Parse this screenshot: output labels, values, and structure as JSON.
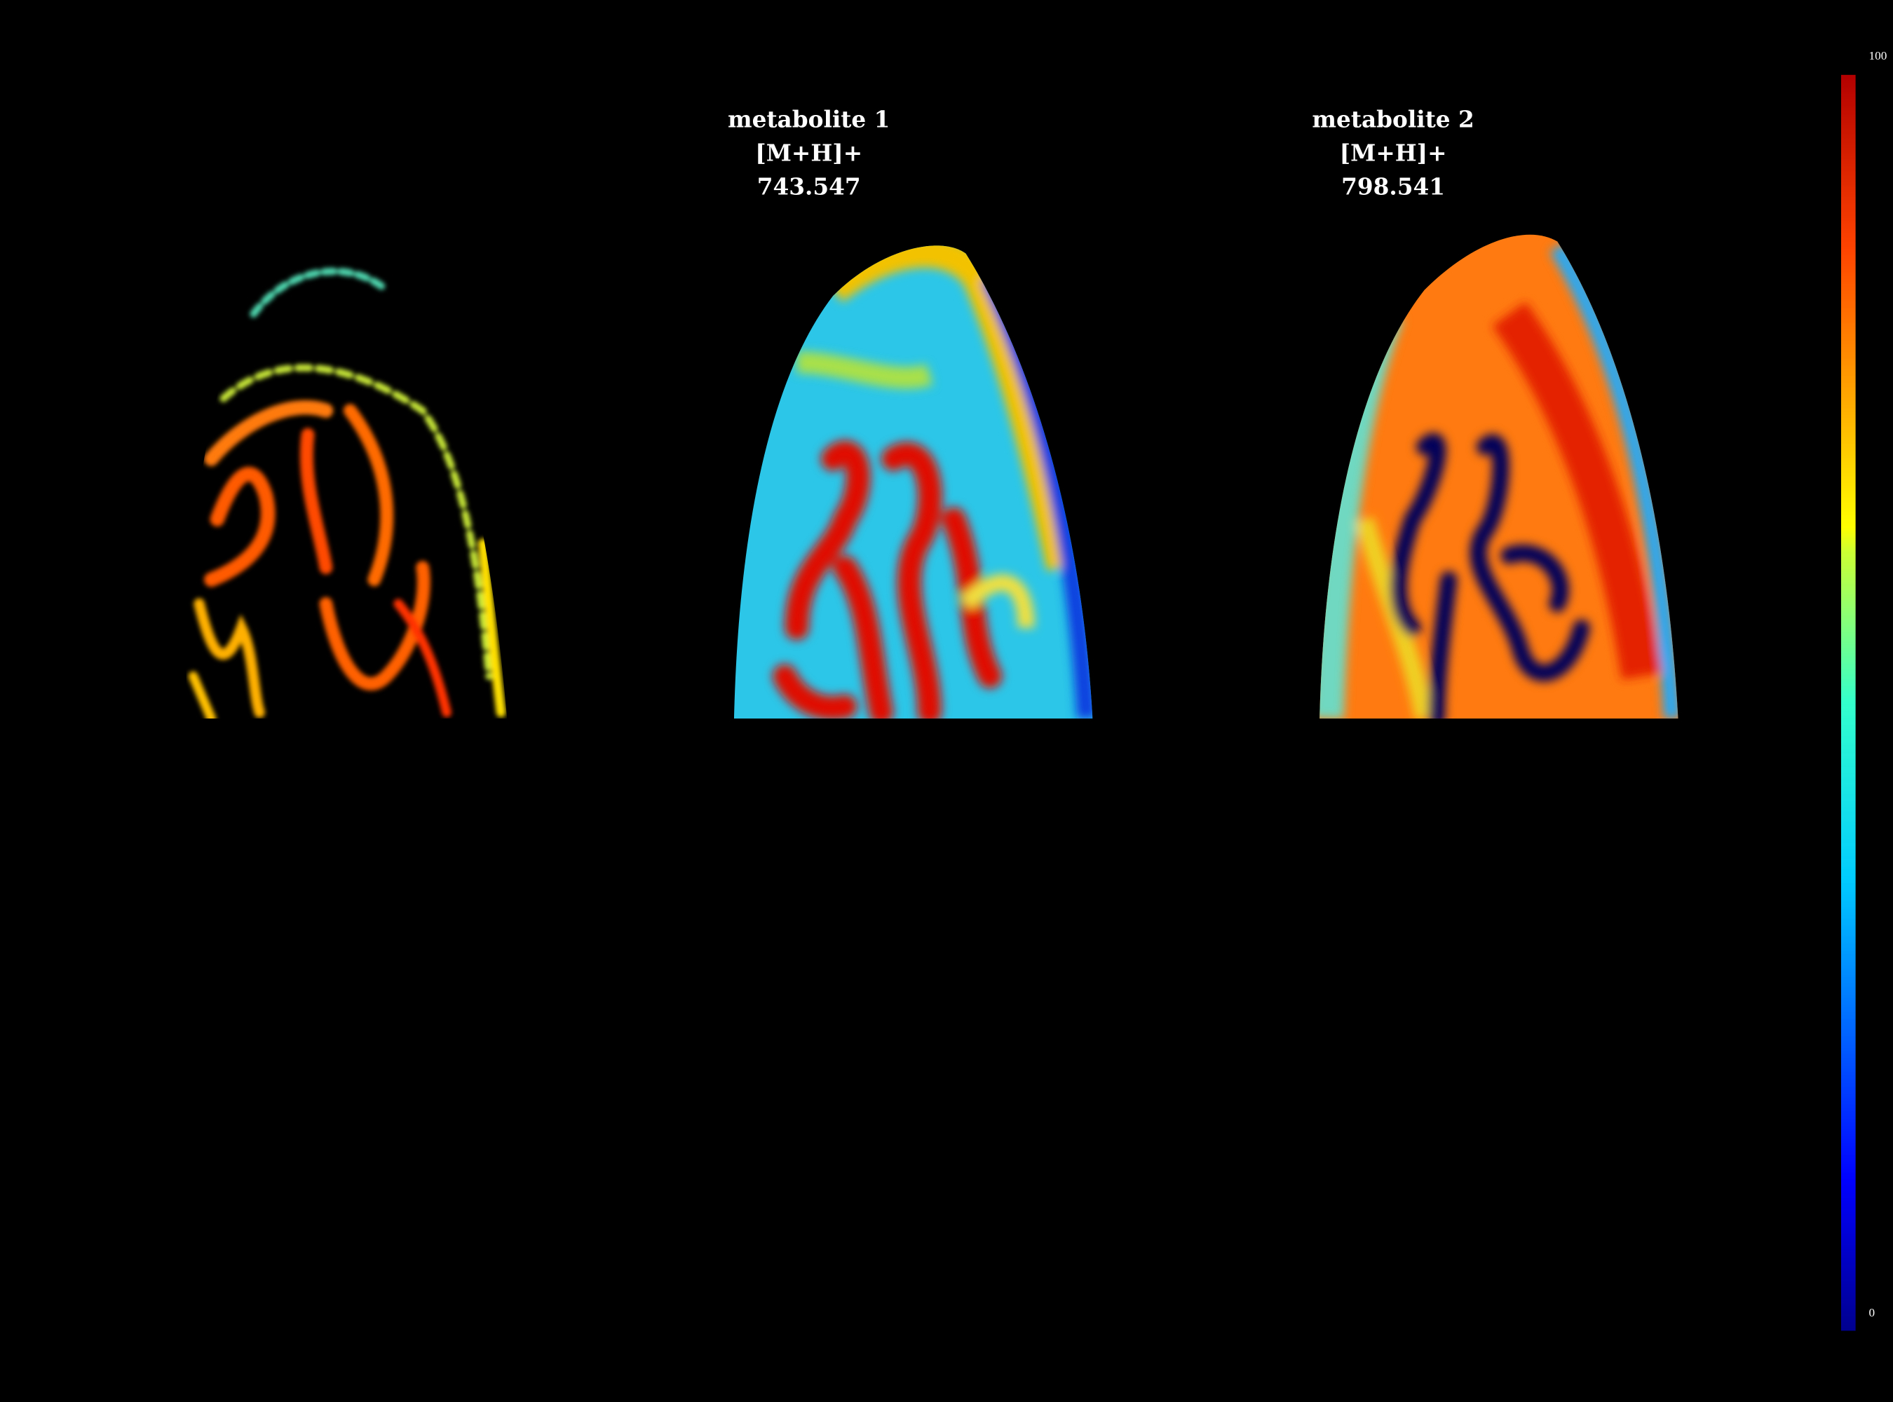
{
  "panels": [
    {
      "title": [
        "metabolite 1",
        "[M+H]+",
        "743.547"
      ]
    },
    {
      "title": [
        "metabolite 2",
        "[M+H]+",
        "798.541"
      ]
    }
  ],
  "colorbar": {
    "max": 100,
    "min": 0
  }
}
